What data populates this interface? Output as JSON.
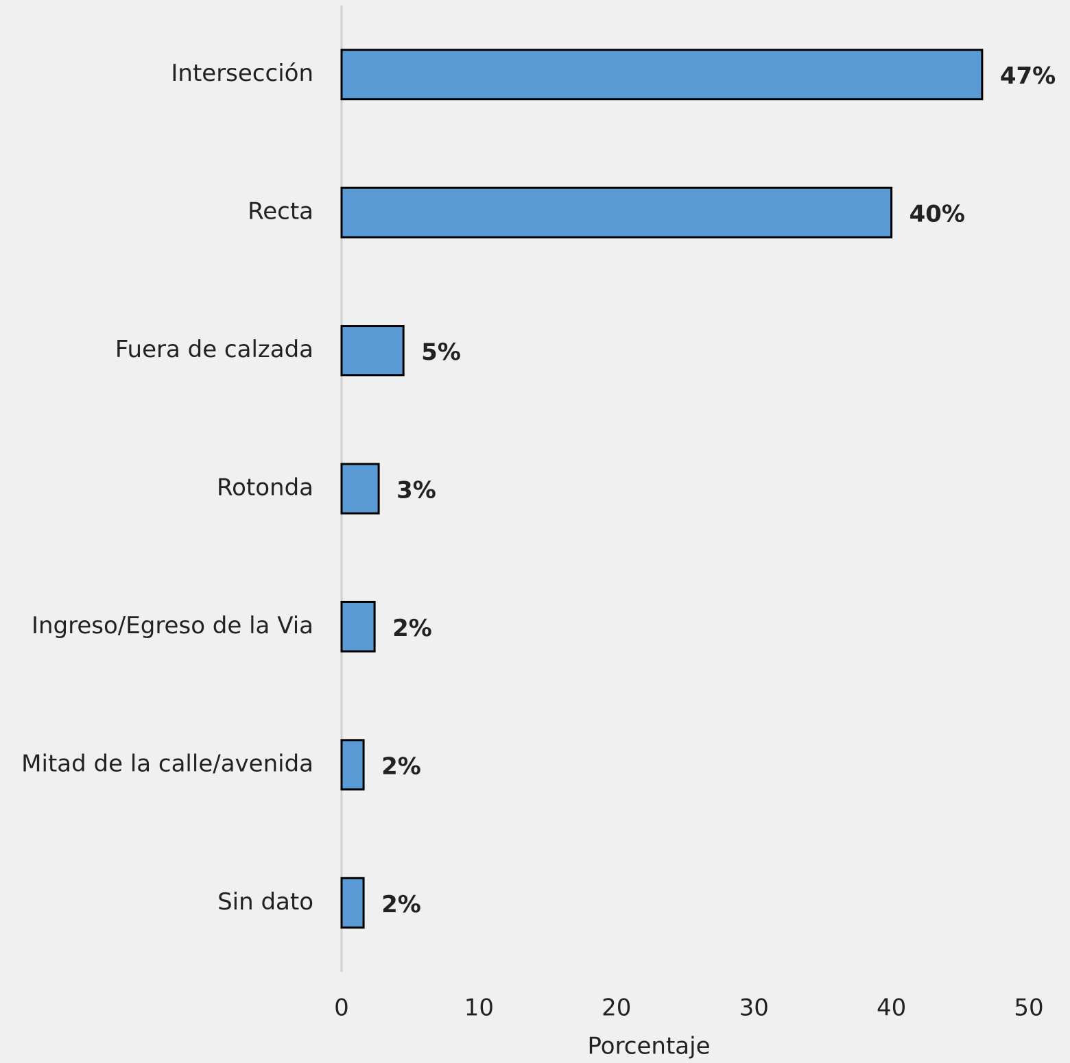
{
  "chart_data": {
    "type": "barh",
    "categories": [
      "Intersección",
      "Recta",
      "Fuera de calzada",
      "Rotonda",
      "Ingreso/Egreso de la Via",
      "Mitad de la calle/avenida",
      "Sin dato"
    ],
    "values": [
      46.6,
      40.0,
      4.5,
      2.7,
      2.4,
      1.6,
      1.6
    ],
    "value_labels": [
      "47%",
      "40%",
      "5%",
      "3%",
      "2%",
      "2%",
      "2%"
    ],
    "color": "#5b9bd5",
    "xlabel": "Porcentaje",
    "xlim": [
      0,
      50
    ],
    "xticks": [
      0,
      10,
      20,
      30,
      40,
      50
    ],
    "grid": false
  }
}
